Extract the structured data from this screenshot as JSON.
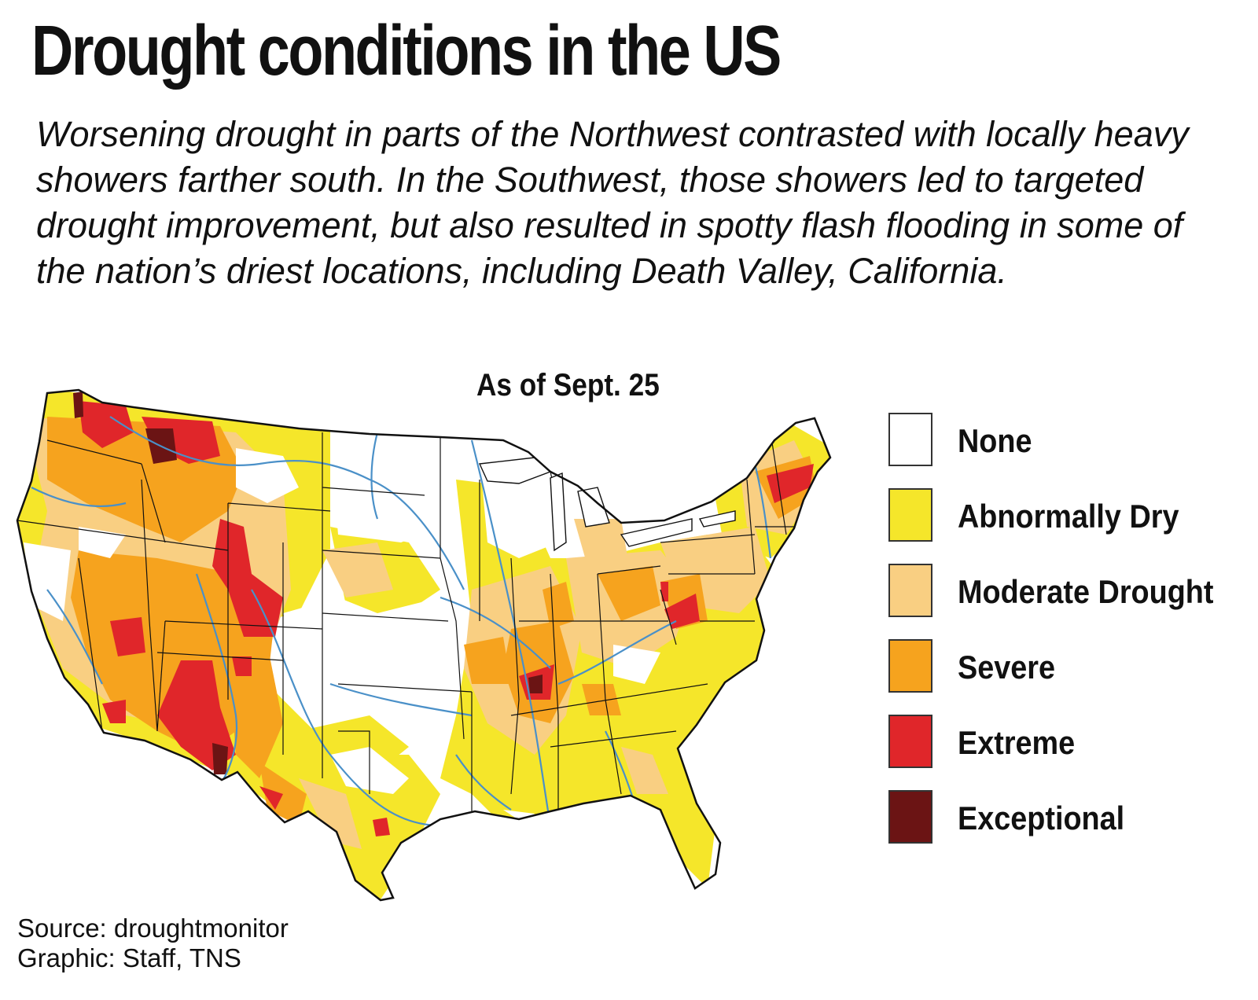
{
  "header": {
    "title": "Drought conditions in the US",
    "subtitle": "Worsening drought in parts of the Northwest contrasted with locally heavy showers farther south. In the Southwest, those showers led to targeted drought improvement, but also resulted in spotty flash flooding in some of the nation’s driest locations, including Death Valley, California."
  },
  "map": {
    "date_label": "As of Sept. 25",
    "colors": {
      "land": "#ffffff",
      "border": "#111111",
      "river": "#4a90c8",
      "abnormally_dry": "#f5e62a",
      "moderate": "#f9cf82",
      "severe": "#f6a31e",
      "extreme": "#e0262a",
      "exceptional": "#6b1414"
    }
  },
  "legend": {
    "items": [
      {
        "label": "None",
        "color": "#ffffff"
      },
      {
        "label": "Abnormally Dry",
        "color": "#f5e62a"
      },
      {
        "label": "Moderate Drought",
        "color": "#f9cf82"
      },
      {
        "label": "Severe",
        "color": "#f6a31e"
      },
      {
        "label": "Extreme",
        "color": "#e0262a"
      },
      {
        "label": "Exceptional",
        "color": "#6b1414"
      }
    ]
  },
  "credits": {
    "source": "Source: droughtmonitor",
    "graphic": "Graphic: Staff, TNS"
  }
}
